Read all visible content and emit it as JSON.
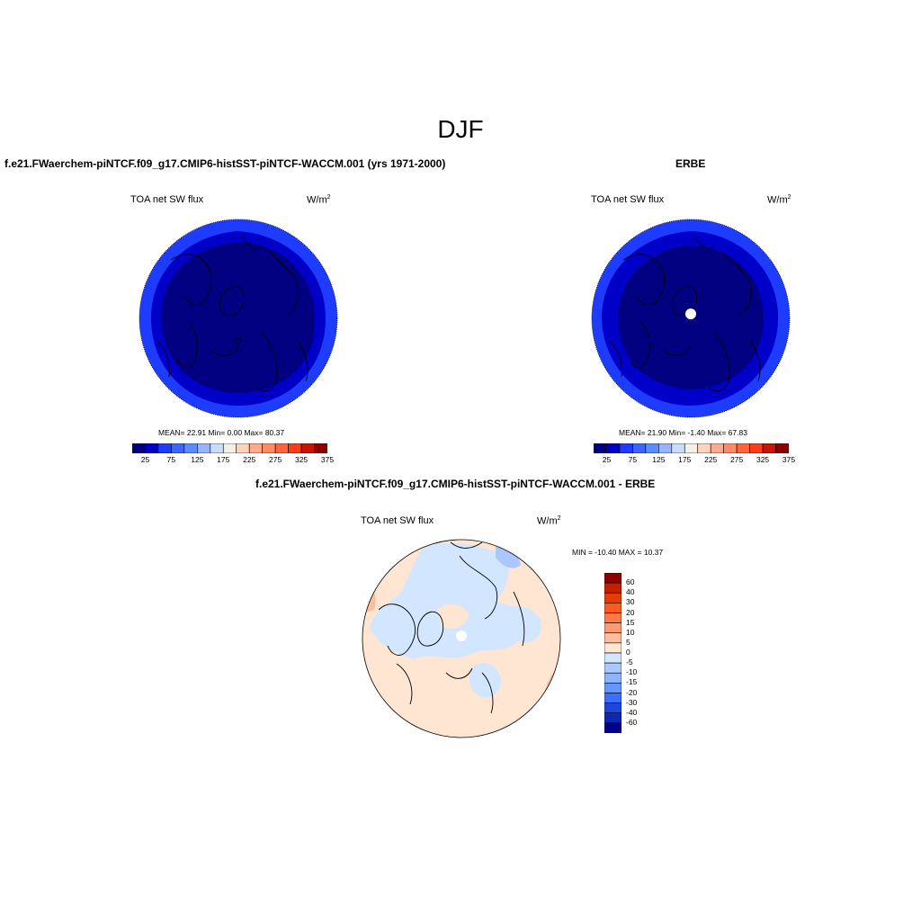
{
  "season": "DJF",
  "panels": {
    "test": {
      "title": "f.e21.FWaerchem-piNTCF.f09_g17.CMIP6-histSST-piNTCF-WACCM.001 (yrs 1971-2000)",
      "variable": "TOA net SW flux",
      "units_base": "W/m",
      "units_exp": "2",
      "stats": "MEAN=  22.91  Min=   0.00  Max=  80.37",
      "colorbar_ticks": [
        "25",
        "75",
        "125",
        "175",
        "225",
        "275",
        "325",
        "375"
      ]
    },
    "obs": {
      "title": "ERBE",
      "variable": "TOA net SW flux",
      "units_base": "W/m",
      "units_exp": "2",
      "stats": "MEAN=  21.90  Min=  -1.40  Max=  67.83",
      "colorbar_ticks": [
        "25",
        "75",
        "125",
        "175",
        "225",
        "275",
        "325",
        "375"
      ]
    },
    "diff": {
      "title": "f.e21.FWaerchem-piNTCF.f09_g17.CMIP6-histSST-piNTCF-WACCM.001 - ERBE",
      "variable": "TOA net SW flux",
      "units_base": "W/m",
      "units_exp": "2",
      "stats": "MIN = -10.40 MAX =  10.37",
      "colorbar_labels": [
        "60",
        "40",
        "30",
        "20",
        "15",
        "10",
        "5",
        "0",
        "-5",
        "-10",
        "-15",
        "-20",
        "-30",
        "-40",
        "-60"
      ]
    }
  },
  "colors": {
    "mean_scale": [
      "#000080",
      "#0000c8",
      "#1e3cff",
      "#3c64ff",
      "#5a8cff",
      "#96b4ff",
      "#c8dcff",
      "#f5f0e6",
      "#ffd2be",
      "#ffaa8c",
      "#ff8c64",
      "#ff643c",
      "#ff3c14",
      "#c81400",
      "#8c0000"
    ],
    "diff_scale": [
      "#8c0000",
      "#c81e00",
      "#e63c0a",
      "#ff5a1e",
      "#ff7846",
      "#ff9b6e",
      "#ffbe9b",
      "#ffe6d2",
      "#d2e6ff",
      "#aac8ff",
      "#8cb4ff",
      "#6496ff",
      "#3c6eff",
      "#1e46dc",
      "#0a28b4",
      "#000090"
    ]
  }
}
